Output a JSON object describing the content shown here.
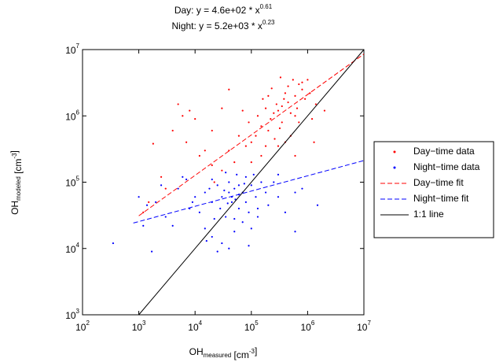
{
  "chart_data": {
    "type": "scatter",
    "title": [
      [
        {
          "text": "Day: y = 4.6e+02 * x"
        },
        {
          "sup": "0.61"
        }
      ],
      [
        {
          "text": "Night: y = 5.2e+03 * x"
        },
        {
          "sup": "0.23"
        }
      ]
    ],
    "x_label": [
      {
        "text": "OH"
      },
      {
        "sub": "measured"
      },
      {
        "text": " [cm"
      },
      {
        "sup": "-3"
      },
      {
        "text": "]"
      }
    ],
    "y_label": [
      {
        "text": "OH"
      },
      {
        "sub": "modeled"
      },
      {
        "text": " [cm"
      },
      {
        "sup": "-3"
      },
      {
        "text": "]"
      }
    ],
    "xscale": "log",
    "yscale": "log",
    "xlim": [
      100,
      10000000
    ],
    "ylim": [
      1000,
      10000000
    ],
    "xticks": [
      {
        "value": 100,
        "label": "10",
        "exponent": "2"
      },
      {
        "value": 1000,
        "label": "10",
        "exponent": "3"
      },
      {
        "value": 10000,
        "label": "10",
        "exponent": "4"
      },
      {
        "value": 100000,
        "label": "10",
        "exponent": "5"
      },
      {
        "value": 1000000,
        "label": "10",
        "exponent": "6"
      },
      {
        "value": 10000000,
        "label": "10",
        "exponent": "7"
      }
    ],
    "yticks": [
      {
        "value": 1000,
        "label": "10",
        "exponent": "3"
      },
      {
        "value": 10000,
        "label": "10",
        "exponent": "4"
      },
      {
        "value": 100000,
        "label": "10",
        "exponent": "5"
      },
      {
        "value": 1000000,
        "label": "10",
        "exponent": "6"
      },
      {
        "value": 10000000,
        "label": "10",
        "exponent": "7"
      }
    ],
    "grid": false,
    "legend": "east outside",
    "series": [
      {
        "name": "Day−time data",
        "color": "#ff0000",
        "mode": "markers",
        "x": [
          300000.0,
          450000.0,
          220000.0,
          600000.0,
          150000.0,
          350000.0,
          800000.0,
          500000.0,
          280000.0,
          120000.0,
          700000.0,
          400000.0,
          200000.0,
          100000.0,
          900000.0,
          650000.0,
          320000.0,
          250000.0,
          180000.0,
          550000.0,
          1100000.0,
          1400000.0,
          80000.0,
          60000.0,
          40000.0,
          150000.0,
          300000.0,
          200000.0,
          700000.0,
          450000.0,
          90000.0,
          130000.0,
          380000.0,
          260000.0,
          600000.0,
          50000.0,
          30000.0,
          20000.0,
          15000.0,
          10000.0,
          8000.0,
          5000.0,
          12000.0,
          4000.0,
          6000.0,
          2500.0,
          1800.0,
          1500.0,
          1200.0,
          3000.0,
          7000.0,
          20000.0,
          30000.0,
          40000.0,
          1300000.0,
          1000000.0,
          800000.0,
          2000000.0,
          1200000.0,
          400000.0,
          160000.0,
          230000.0,
          330000.0,
          500000.0,
          70000.0,
          100000.0,
          600000.0,
          22000.0,
          180000.0,
          350000.0
        ],
        "values": [
          1200000.0,
          1600000.0,
          900000.0,
          2000000.0,
          700000.0,
          800000.0,
          2500000.0,
          1100000.0,
          1500000.0,
          500000.0,
          3000000.0,
          2200000.0,
          600000.0,
          400000.0,
          1800000.0,
          1300000.0,
          650000.0,
          1100000.0,
          1300000.0,
          3500000.0,
          2200000.0,
          1500000.0,
          350000.0,
          500000.0,
          300000.0,
          250000.0,
          350000.0,
          2000000.0,
          800000.0,
          2800000.0,
          800000.0,
          1000000.0,
          1800000.0,
          450000.0,
          1000000.0,
          200000.0,
          150000.0,
          180000.0,
          300000.0,
          900000.0,
          1200000.0,
          1500000.0,
          250000.0,
          600000.0,
          1000000.0,
          120000.0,
          380000.0,
          50000.0,
          35000.0,
          80000.0,
          400000.0,
          600000.0,
          1300000.0,
          2500000.0,
          400000.0,
          3500000.0,
          3200000.0,
          1200000.0,
          900000.0,
          400000.0,
          1800000.0,
          2600000.0,
          3800000.0,
          500000.0,
          1200000.0,
          200000.0,
          250000.0,
          100000.0,
          350000.0,
          1400000.0
        ]
      },
      {
        "name": "Night−time data",
        "color": "#0000ff",
        "mode": "markers",
        "x": [
          30000.0,
          50000.0,
          20000.0,
          70000.0,
          40000.0,
          100000.0,
          15000.0,
          60000.0,
          35000.0,
          80000.0,
          25000.0,
          45000.0,
          120000.0,
          150000.0,
          90000.0,
          10000.0,
          8000.0,
          5000.0,
          3000.0,
          2000.0,
          1200.0,
          1700.0,
          350.0,
          1000.0,
          6000.0,
          2500.0,
          15000.0,
          20000.0,
          30000.0,
          40000.0,
          25000.0,
          50000.0,
          70000.0,
          100000.0,
          130000.0,
          200000.0,
          300000.0,
          400000.0,
          600000.0,
          800000.0,
          1500000.0,
          300000.0,
          180000.0,
          55000.0,
          35000.0,
          20000.0,
          12000.0,
          80000.0,
          60000.0,
          40000.0,
          28000.0,
          18000.0,
          9000.0,
          60000.0,
          45000.0,
          33000.0,
          75000.0,
          110000.0,
          50000.0,
          22000.0,
          16000.0,
          90000.0,
          4000.0,
          7000.0,
          1400.0,
          130000.0,
          250000.0,
          600000.0,
          38000.0,
          52000.0
        ],
        "values": [
          60000.0,
          80000.0,
          50000.0,
          70000.0,
          100000.0,
          90000.0,
          70000.0,
          40000.0,
          30000.0,
          120000.0,
          90000.0,
          50000.0,
          60000.0,
          100000.0,
          35000.0,
          60000.0,
          40000.0,
          80000.0,
          30000.0,
          50000.0,
          22000.0,
          9000.0,
          12000.0,
          60000.0,
          120000.0,
          90000.0,
          20000.0,
          15000.0,
          12000.0,
          10000.0,
          9000.0,
          18000.0,
          25000.0,
          20000.0,
          30000.0,
          45000.0,
          60000.0,
          35000.0,
          18000.0,
          80000.0,
          45000.0,
          130000.0,
          70000.0,
          130000.0,
          140000.0,
          110000.0,
          35000.0,
          50000.0,
          90000.0,
          70000.0,
          40000.0,
          80000.0,
          50000.0,
          65000.0,
          60000.0,
          75000.0,
          95000.0,
          130000.0,
          28000.0,
          28000.0,
          13000.0,
          11000.0,
          22000.0,
          110000.0,
          45000.0,
          40000.0,
          100000.0,
          70000.0,
          48000.0,
          55000.0
        ]
      },
      {
        "name": "Day−time fit",
        "color": "#ff0000",
        "mode": "line",
        "dash": true,
        "x": [
          1000,
          10000000
        ],
        "values": [
          31100,
          8570000
        ]
      },
      {
        "name": "Night−time fit",
        "color": "#0000ff",
        "mode": "line",
        "dash": true,
        "x": [
          800,
          10000000
        ],
        "values": [
          24200,
          212000
        ]
      },
      {
        "name": "1:1 line",
        "color": "#000000",
        "mode": "line",
        "dash": false,
        "x": [
          1000,
          10000000
        ],
        "values": [
          1000,
          10000000
        ]
      }
    ]
  }
}
